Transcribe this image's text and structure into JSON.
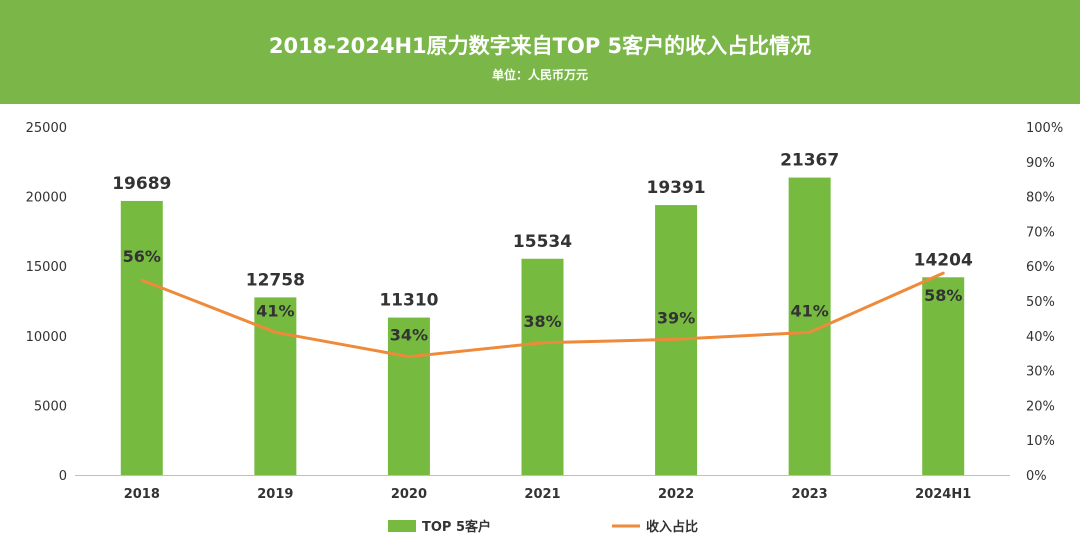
{
  "header": {
    "title": "2018-2024H1原力数字来自TOP 5客户的收入占比情况",
    "subtitle": "单位：人民币万元"
  },
  "colors": {
    "header_bg": "#7ab648",
    "bar": "#76bb40",
    "line": "#ee8a3a"
  },
  "chart_data": {
    "type": "bar",
    "categories": [
      "2018",
      "2019",
      "2020",
      "2021",
      "2022",
      "2023",
      "2024H1"
    ],
    "series": [
      {
        "name": "TOP 5客户",
        "type": "bar",
        "axis": "left",
        "values": [
          19689,
          12758,
          11310,
          15534,
          19391,
          21367,
          14204
        ],
        "labels": [
          "19689",
          "12758",
          "11310",
          "15534",
          "19391",
          "21367",
          "14204"
        ]
      },
      {
        "name": "收入占比",
        "type": "line",
        "axis": "right",
        "values": [
          56,
          41,
          34,
          38,
          39,
          41,
          58
        ],
        "labels": [
          "56%",
          "41%",
          "34%",
          "38%",
          "39%",
          "41%",
          "58%"
        ]
      }
    ],
    "y_left": {
      "min": 0,
      "max": 25000,
      "ticks": [
        "0",
        "5000",
        "10000",
        "15000",
        "20000",
        "25000"
      ]
    },
    "y_right": {
      "min": 0,
      "max": 100,
      "ticks": [
        "0%",
        "10%",
        "20%",
        "30%",
        "40%",
        "50%",
        "60%",
        "70%",
        "80%",
        "90%",
        "100%"
      ]
    },
    "legend": {
      "position": "bottom",
      "entries": [
        "TOP 5客户",
        "收入占比"
      ]
    }
  }
}
